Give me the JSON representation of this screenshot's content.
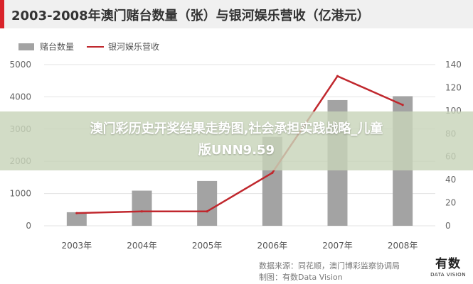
{
  "title": "2003-2008年澳门赌台数量（张）与银河娱乐营收（亿港元）",
  "colors": {
    "bar": "#a3a3a3",
    "line": "#c0272d",
    "title_accent": "#d9232a",
    "grid": "#e3e3e3"
  },
  "overlay": {
    "line1": "澳门彩历史开奖结果走势图,社会承担实践战略_儿童",
    "line2": "版UNN9.59"
  },
  "footer": {
    "source_line1": "数据来源：同花顺，澳门博彩监察协调局",
    "source_line2": "制图：有数Data Vision",
    "logo_main": "有数",
    "logo_sub": "DATA VISION"
  },
  "chart_data": {
    "type": "bar",
    "categories": [
      "2003年",
      "2004年",
      "2005年",
      "2006年",
      "2007年",
      "2008年"
    ],
    "series": [
      {
        "name": "赌台数量",
        "type": "bar",
        "axis": "left",
        "values": [
          420,
          1090,
          1390,
          2760,
          3900,
          4020
        ]
      },
      {
        "name": "银河娱乐营收",
        "type": "line",
        "axis": "right",
        "values": [
          11,
          12.5,
          12.5,
          46,
          130,
          105
        ]
      }
    ],
    "y_left": {
      "min": 0,
      "max": 5000,
      "ticks": [
        0,
        1000,
        2000,
        3000,
        4000,
        5000
      ]
    },
    "y_right": {
      "min": 0,
      "max": 140,
      "ticks": [
        0,
        20,
        40,
        60,
        80,
        100,
        120,
        140
      ]
    },
    "grid": true,
    "legend_position": "top-left"
  }
}
